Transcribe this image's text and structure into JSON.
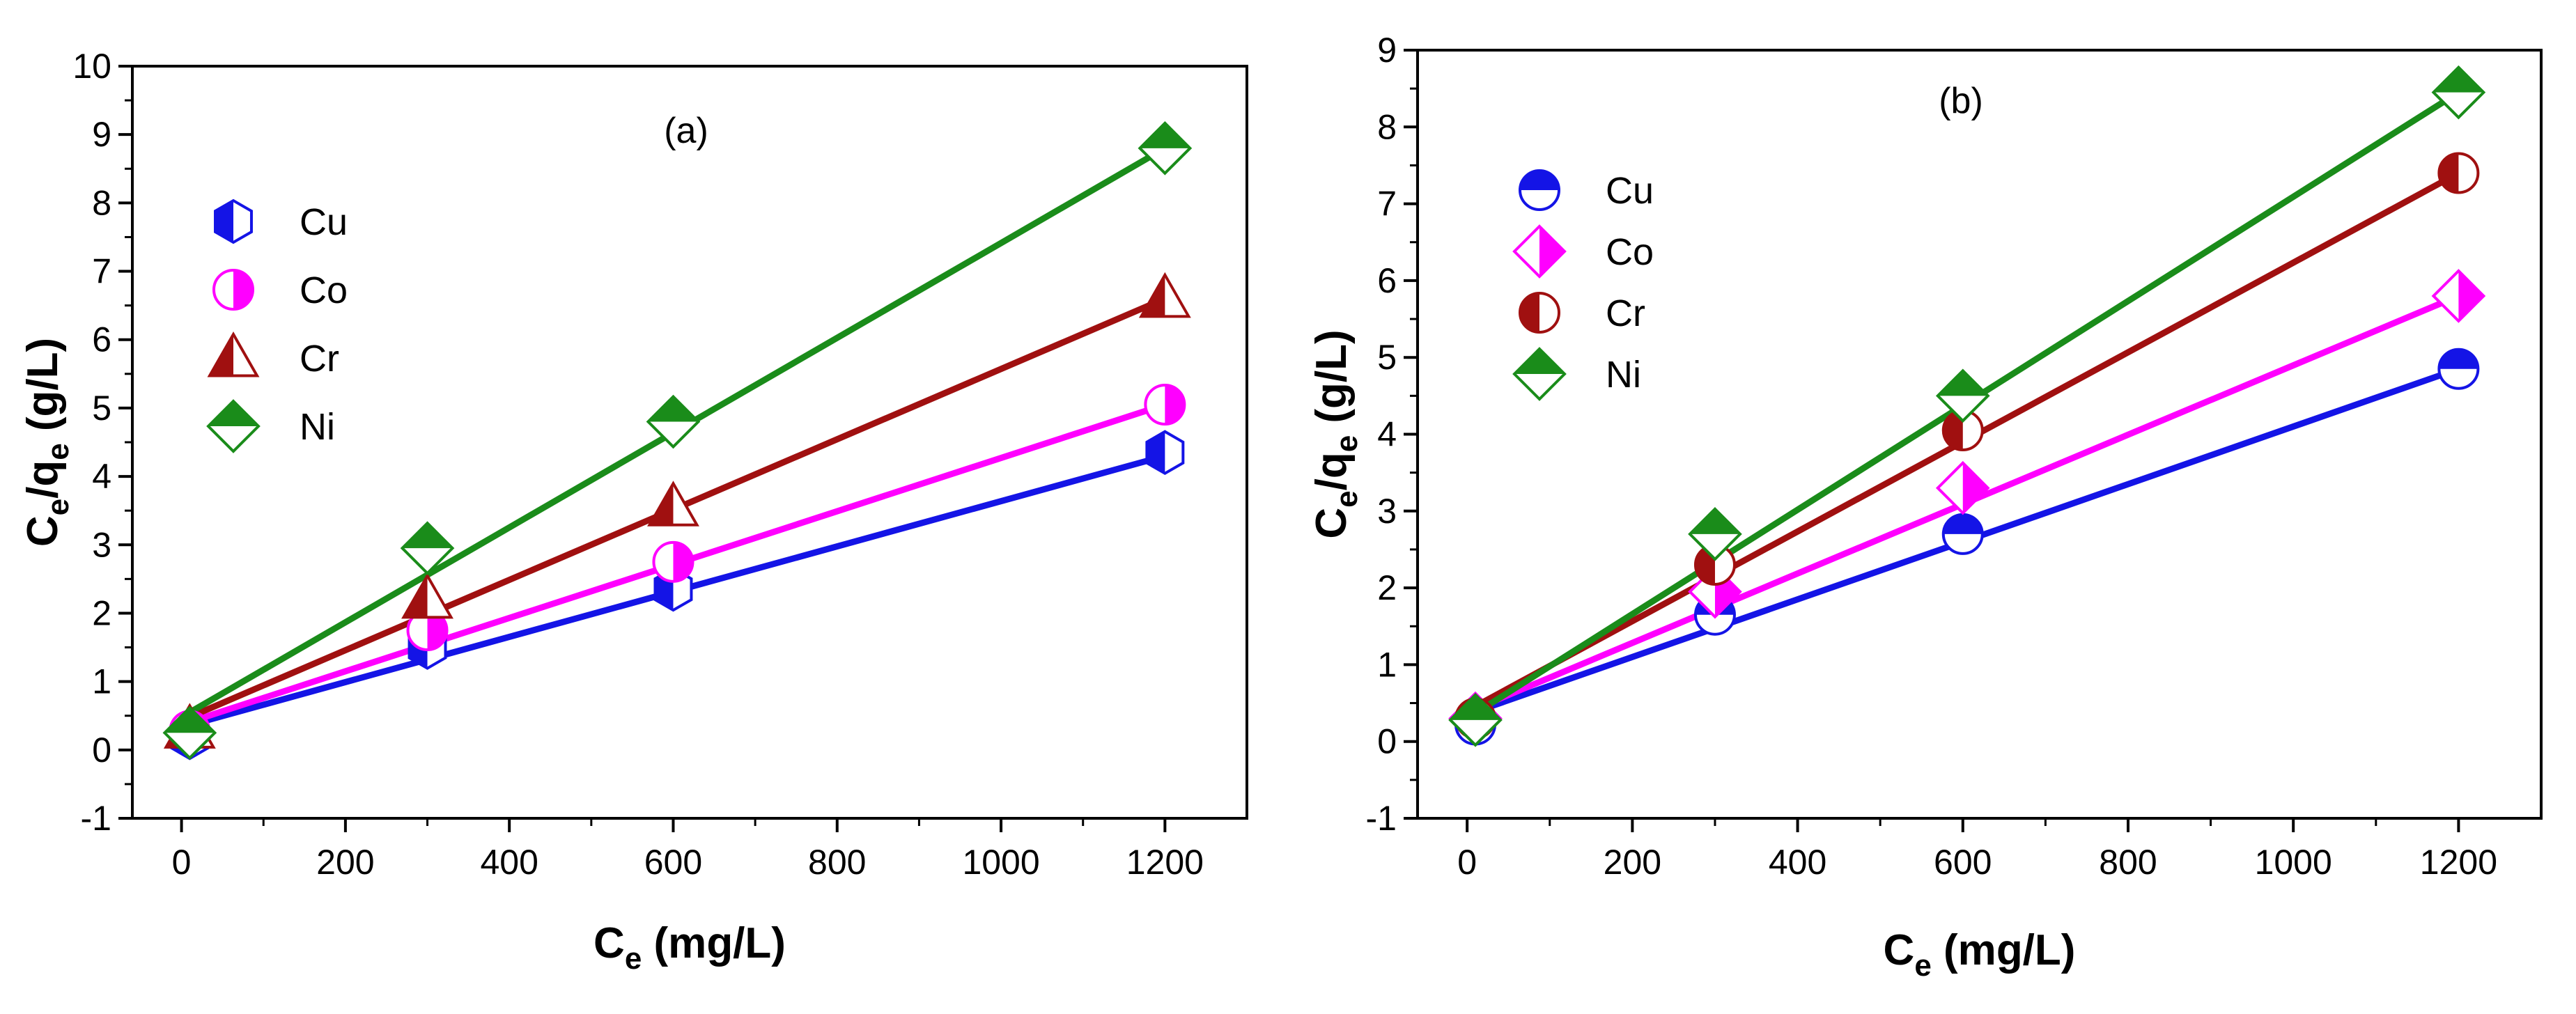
{
  "figure": {
    "panels": [
      "(a)",
      "(b)"
    ]
  },
  "colors": {
    "Cu": "#1414e6",
    "Co": "#ff00ff",
    "Cr": "#a01010",
    "Ni": "#1a8c1a"
  },
  "chart_data": [
    {
      "type": "scatter",
      "title": "(a)",
      "xlabel": "C",
      "xlabel_sub": "e",
      "xlabel_tail": " (mg/L)",
      "ylabel_parts": [
        "C",
        "e",
        "/q",
        "e",
        " (g/L)"
      ],
      "xlim": [
        -60,
        1300
      ],
      "ylim": [
        -1,
        10
      ],
      "xticks": [
        0,
        200,
        400,
        600,
        800,
        1000,
        1200
      ],
      "xtick_labels": [
        "0",
        "200",
        "400",
        "600",
        "800",
        "1000",
        "1200"
      ],
      "yticks": [
        -1,
        0,
        1,
        2,
        3,
        4,
        5,
        6,
        7,
        8,
        9,
        10
      ],
      "ytick_labels": [
        "-1",
        "0",
        "1",
        "2",
        "3",
        "4",
        "5",
        "6",
        "7",
        "8",
        "9",
        "10"
      ],
      "legend_position": "upper-left",
      "series": [
        {
          "name": "Cu",
          "marker": "hexagon",
          "x": [
            10,
            300,
            600,
            1200
          ],
          "y": [
            0.18,
            1.5,
            2.35,
            4.35
          ],
          "fit": [
            [
              0,
              0.33
            ],
            [
              1200,
              4.3
            ]
          ]
        },
        {
          "name": "Co",
          "marker": "circle",
          "x": [
            10,
            300,
            600,
            1200
          ],
          "y": [
            0.28,
            1.75,
            2.75,
            5.05
          ],
          "fit": [
            [
              0,
              0.37
            ],
            [
              1200,
              5.05
            ]
          ]
        },
        {
          "name": "Cr",
          "marker": "triangle",
          "x": [
            10,
            300,
            600,
            1200
          ],
          "y": [
            0.3,
            2.2,
            3.55,
            6.6
          ],
          "fit": [
            [
              0,
              0.43
            ],
            [
              1200,
              6.6
            ]
          ]
        },
        {
          "name": "Ni",
          "marker": "diamond",
          "x": [
            10,
            300,
            600,
            1200
          ],
          "y": [
            0.25,
            2.95,
            4.8,
            8.8
          ],
          "fit": [
            [
              0,
              0.48
            ],
            [
              1200,
              8.8
            ]
          ]
        }
      ]
    },
    {
      "type": "scatter",
      "title": "(b)",
      "xlabel": "C",
      "xlabel_sub": "e",
      "xlabel_tail": " (mg/L)",
      "ylabel_parts": [
        "C",
        "e",
        "/q",
        "e",
        " (g/L)"
      ],
      "xlim": [
        -60,
        1300
      ],
      "ylim": [
        -1,
        9
      ],
      "xticks": [
        0,
        200,
        400,
        600,
        800,
        1000,
        1200
      ],
      "xtick_labels": [
        "0",
        "200",
        "400",
        "600",
        "800",
        "1000",
        "1200"
      ],
      "yticks": [
        -1,
        0,
        1,
        2,
        3,
        4,
        5,
        6,
        7,
        8,
        9
      ],
      "ytick_labels": [
        "-1",
        "0",
        "1",
        "2",
        "3",
        "4",
        "5",
        "6",
        "7",
        "8",
        "9"
      ],
      "legend_position": "upper-left",
      "series": [
        {
          "name": "Cu",
          "marker": "circle-top",
          "x": [
            10,
            300,
            600,
            1200
          ],
          "y": [
            0.22,
            1.65,
            2.7,
            4.85
          ],
          "fit": [
            [
              0,
              0.35
            ],
            [
              1200,
              4.85
            ]
          ]
        },
        {
          "name": "Co",
          "marker": "diamond-right",
          "x": [
            10,
            300,
            600,
            1200
          ],
          "y": [
            0.3,
            1.95,
            3.3,
            5.8
          ],
          "fit": [
            [
              0,
              0.38
            ],
            [
              1200,
              5.8
            ]
          ]
        },
        {
          "name": "Cr",
          "marker": "circle-left",
          "x": [
            10,
            300,
            600,
            1200
          ],
          "y": [
            0.3,
            2.3,
            4.05,
            7.4
          ],
          "fit": [
            [
              0,
              0.4
            ],
            [
              1200,
              7.4
            ]
          ]
        },
        {
          "name": "Ni",
          "marker": "diamond-top",
          "x": [
            10,
            300,
            600,
            1200
          ],
          "y": [
            0.28,
            2.7,
            4.5,
            8.45
          ],
          "fit": [
            [
              0,
              0.3
            ],
            [
              1200,
              8.45
            ]
          ]
        }
      ]
    }
  ]
}
